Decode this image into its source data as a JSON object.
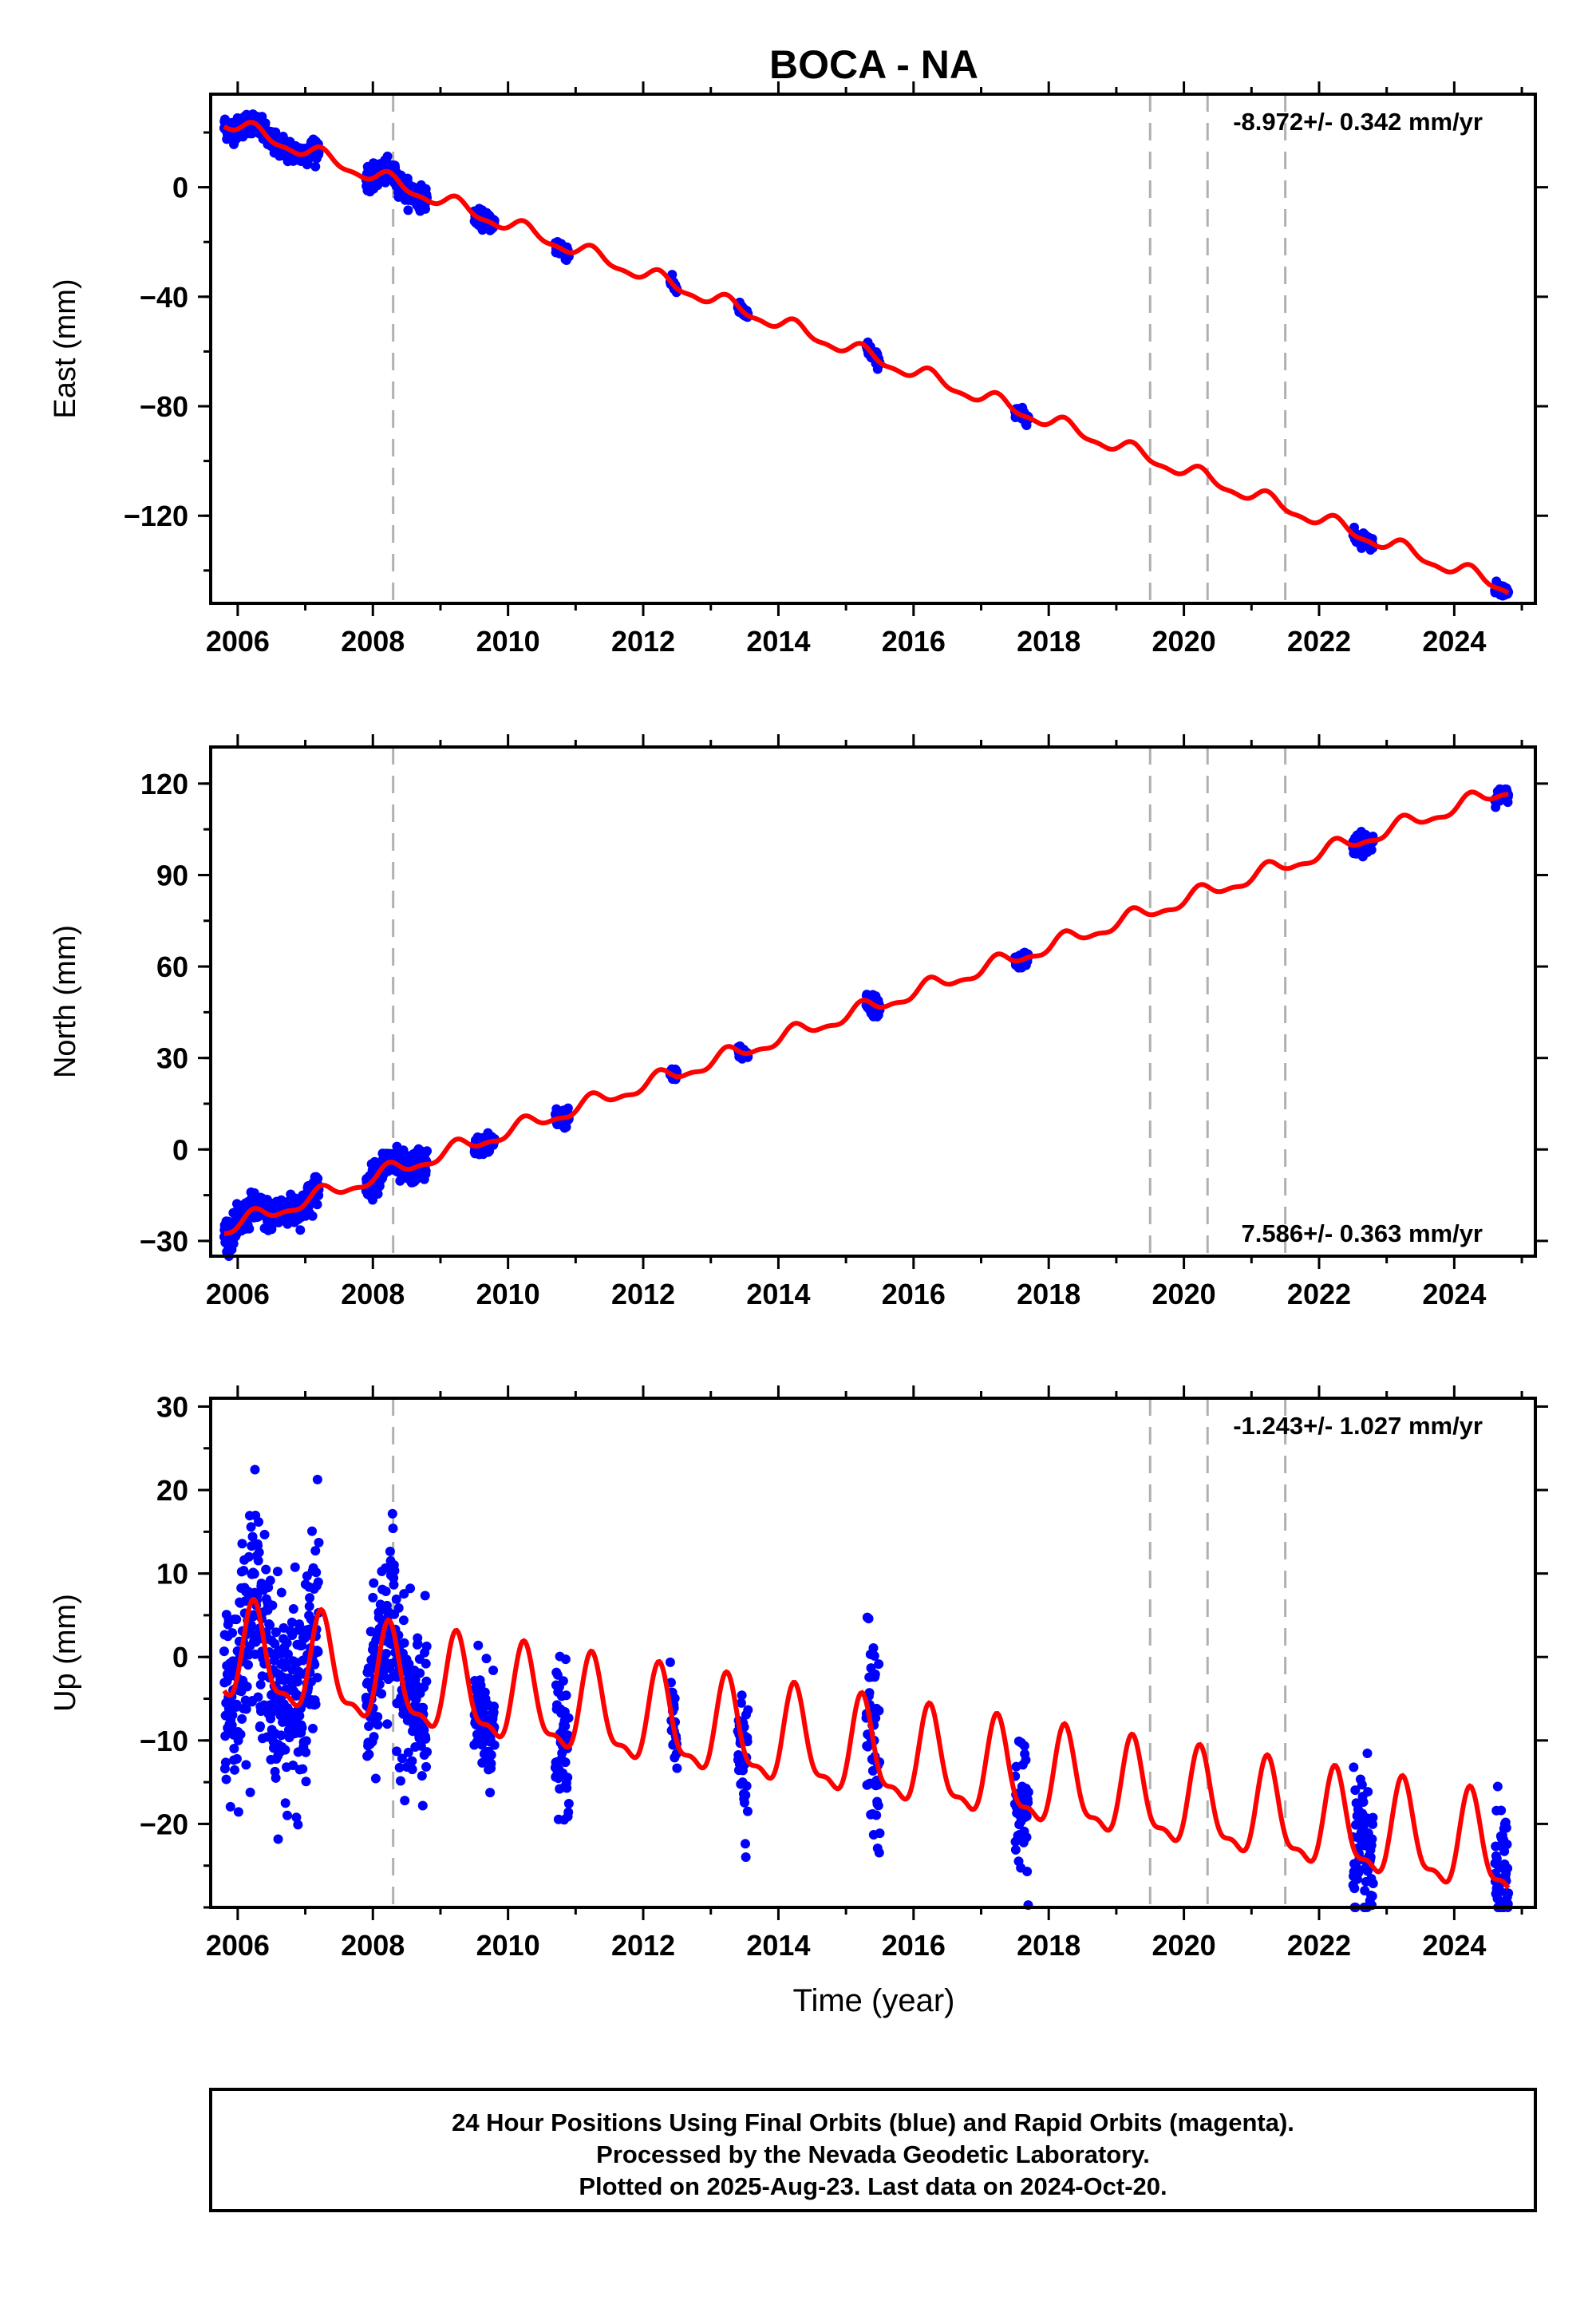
{
  "title": "BOCA - NA",
  "xlabel": "Time (year)",
  "x_ticks": [
    2006,
    2008,
    2010,
    2012,
    2014,
    2016,
    2018,
    2020,
    2022,
    2024
  ],
  "xlim": [
    2005.6,
    2025.2
  ],
  "footer": {
    "line1": "24 Hour Positions Using Final Orbits (blue) and Rapid Orbits (magenta).",
    "line2": "Processed by the Nevada Geodetic Laboratory.",
    "line3": "Plotted on 2025-Aug-23. Last data on 2024-Oct-20."
  },
  "colors": {
    "data": "#0000ff",
    "model": "#ff0000",
    "break": "#b0b0b0"
  },
  "chart_data": [
    {
      "type": "scatter",
      "component": "east",
      "ylabel": "East (mm)",
      "rate_text": "-8.972+/- 0.342 mm/yr",
      "ylim": [
        -152,
        34
      ],
      "yticks": [
        0,
        -40,
        -80,
        -120
      ],
      "breaks": [
        2008.3,
        2019.5,
        2020.35,
        2021.5
      ],
      "trend": {
        "t0": 2005.8,
        "y0": 24,
        "slope": -8.972
      },
      "seasonal": {
        "annual_amp": 2.5,
        "semiannual_amp": 1.0
      },
      "data_segments": [
        {
          "from": 2005.8,
          "to": 2007.2,
          "spread": 2
        },
        {
          "from": 2007.9,
          "to": 2008.8,
          "spread": 2
        },
        {
          "from": 2009.5,
          "to": 2009.8,
          "spread": 1.5
        },
        {
          "from": 2010.7,
          "to": 2010.9,
          "spread": 1.5
        },
        {
          "from": 2012.4,
          "to": 2012.5,
          "spread": 1
        },
        {
          "from": 2013.4,
          "to": 2013.55,
          "spread": 1
        },
        {
          "from": 2015.3,
          "to": 2015.5,
          "spread": 1.2
        },
        {
          "from": 2017.5,
          "to": 2017.7,
          "spread": 1.2
        },
        {
          "from": 2022.5,
          "to": 2022.8,
          "spread": 1.2
        },
        {
          "from": 2024.6,
          "to": 2024.8,
          "spread": 1
        }
      ]
    },
    {
      "type": "scatter",
      "component": "north",
      "ylabel": "North (mm)",
      "rate_text": "7.586+/- 0.363 mm/yr",
      "ylim": [
        -35,
        132
      ],
      "yticks": [
        120,
        90,
        60,
        30,
        0,
        -30
      ],
      "breaks": [
        2008.3,
        2019.5,
        2020.35,
        2021.5
      ],
      "trend": {
        "t0": 2005.8,
        "y0": -26,
        "slope": 7.586
      },
      "seasonal": {
        "annual_amp": 2.3,
        "semiannual_amp": 1.0
      },
      "data_segments": [
        {
          "from": 2005.8,
          "to": 2007.2,
          "spread": 2.5
        },
        {
          "from": 2007.9,
          "to": 2008.8,
          "spread": 2.5
        },
        {
          "from": 2009.5,
          "to": 2009.8,
          "spread": 1.5
        },
        {
          "from": 2010.7,
          "to": 2010.9,
          "spread": 1.5
        },
        {
          "from": 2012.4,
          "to": 2012.5,
          "spread": 1
        },
        {
          "from": 2013.4,
          "to": 2013.55,
          "spread": 1.2
        },
        {
          "from": 2015.3,
          "to": 2015.5,
          "spread": 1.5
        },
        {
          "from": 2017.5,
          "to": 2017.7,
          "spread": 1.2
        },
        {
          "from": 2022.5,
          "to": 2022.8,
          "spread": 1.5
        },
        {
          "from": 2024.6,
          "to": 2024.8,
          "spread": 1
        }
      ]
    },
    {
      "type": "scatter",
      "component": "up",
      "ylabel": "Up (mm)",
      "rate_text": "-1.243+/- 1.027 mm/yr",
      "ylim": [
        -30,
        31
      ],
      "yticks": [
        30,
        20,
        10,
        0,
        -10,
        -20
      ],
      "breaks": [
        2008.3,
        2019.5,
        2020.35,
        2021.5
      ],
      "trend": {
        "t0": 2005.8,
        "y0": 0,
        "slope": -1.243
      },
      "seasonal": {
        "annual_amp": 5.5,
        "semiannual_amp": 2.0
      },
      "data_segments": [
        {
          "from": 2005.8,
          "to": 2007.2,
          "spread": 6
        },
        {
          "from": 2007.9,
          "to": 2008.8,
          "spread": 5
        },
        {
          "from": 2009.5,
          "to": 2009.8,
          "spread": 3.5
        },
        {
          "from": 2010.7,
          "to": 2010.9,
          "spread": 4
        },
        {
          "from": 2012.4,
          "to": 2012.5,
          "spread": 2.5
        },
        {
          "from": 2013.4,
          "to": 2013.55,
          "spread": 4
        },
        {
          "from": 2015.3,
          "to": 2015.5,
          "spread": 6
        },
        {
          "from": 2017.5,
          "to": 2017.7,
          "spread": 5
        },
        {
          "from": 2022.5,
          "to": 2022.8,
          "spread": 4.5
        },
        {
          "from": 2024.6,
          "to": 2024.8,
          "spread": 4
        }
      ]
    }
  ]
}
